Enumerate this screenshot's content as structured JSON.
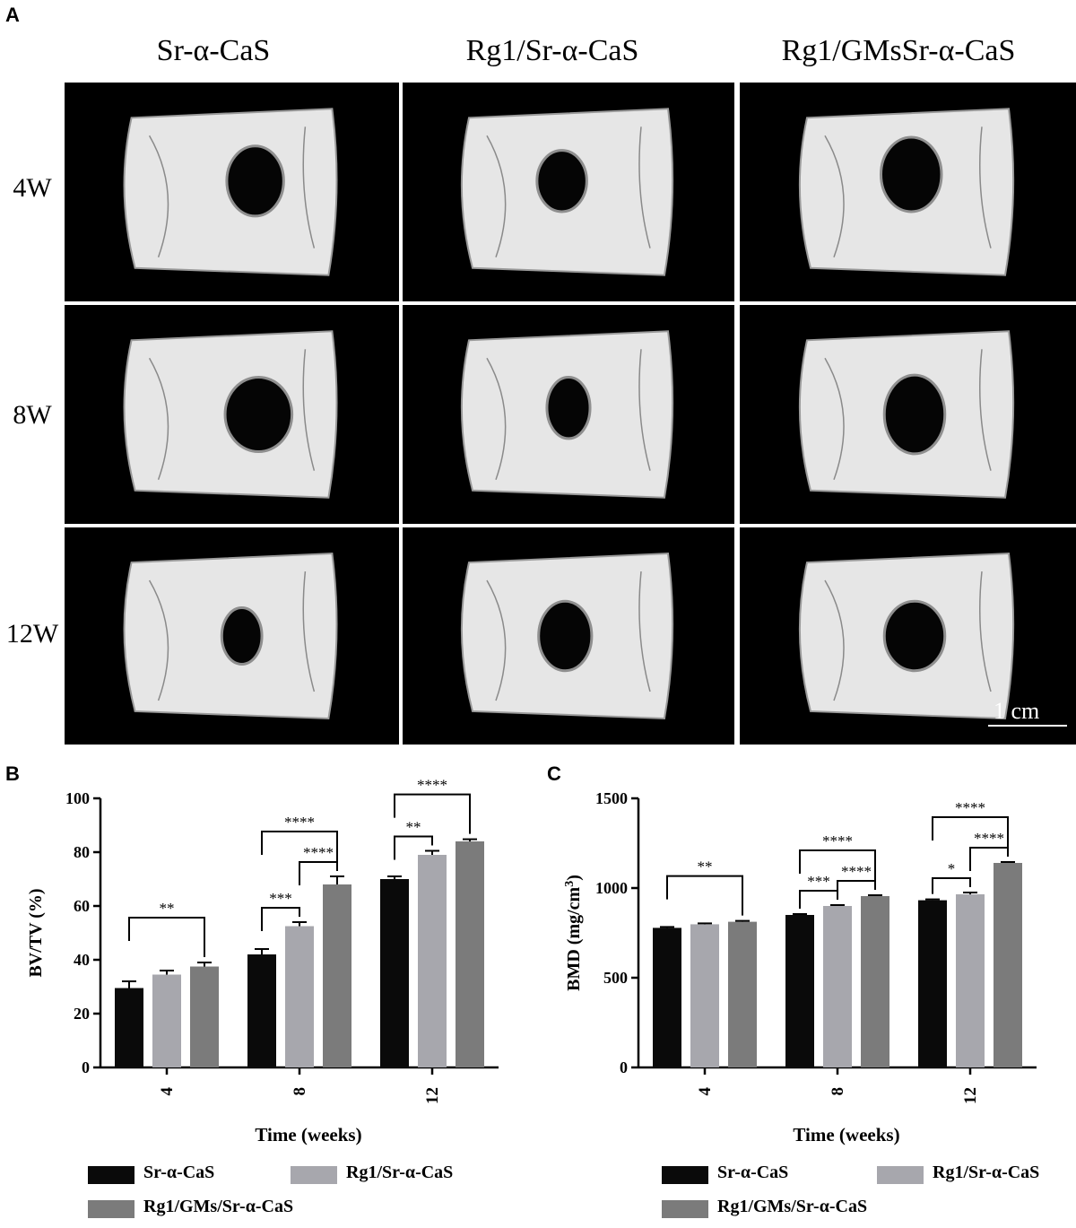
{
  "panels": {
    "a": "A",
    "b": "B",
    "c": "C"
  },
  "columns": [
    "Sr-α-CaS",
    "Rg1/Sr-α-CaS",
    "Rg1/GMsSr-α-CaS"
  ],
  "rows": [
    "4W",
    "8W",
    "12W"
  ],
  "scale_bar": "1 cm",
  "colors": {
    "series1": "#0a0a0a",
    "series2": "#a7a7ad",
    "series3": "#7b7b7b",
    "bone": "#e6e6e6"
  },
  "legend": [
    "Sr-α-CaS",
    "Rg1/Sr-α-CaS",
    "Rg1/GMs/Sr-α-CaS"
  ],
  "chart_data": [
    {
      "type": "bar",
      "categories": [
        "4",
        "8",
        "12"
      ],
      "series": [
        {
          "name": "Sr-α-CaS",
          "values": [
            29.5,
            42,
            70
          ],
          "errors": [
            2.5,
            2,
            1
          ]
        },
        {
          "name": "Rg1/Sr-α-CaS",
          "values": [
            34.5,
            52.5,
            79
          ],
          "errors": [
            1.5,
            1.5,
            1.5
          ]
        },
        {
          "name": "Rg1/GMs/Sr-α-CaS",
          "values": [
            37.5,
            68,
            84
          ],
          "errors": [
            1.5,
            3,
            0.8
          ]
        }
      ],
      "xlabel": "Time (weeks)",
      "ylabel": "BV/TV (%)",
      "ylim": [
        0,
        100
      ],
      "yticks": [
        0,
        20,
        40,
        60,
        80,
        100
      ],
      "significance": [
        {
          "group": 0,
          "from": 0,
          "to": 2,
          "label": "**"
        },
        {
          "group": 1,
          "from": 0,
          "to": 1,
          "label": "***"
        },
        {
          "group": 1,
          "from": 1,
          "to": 2,
          "label": "****"
        },
        {
          "group": 1,
          "from": 0,
          "to": 2,
          "label": "****"
        },
        {
          "group": 2,
          "from": 0,
          "to": 1,
          "label": "**"
        },
        {
          "group": 2,
          "from": 0,
          "to": 2,
          "label": "****"
        }
      ]
    },
    {
      "type": "bar",
      "categories": [
        "4",
        "8",
        "12"
      ],
      "series": [
        {
          "name": "Sr-α-CaS",
          "values": [
            778,
            850,
            932
          ],
          "errors": [
            5,
            5,
            5
          ]
        },
        {
          "name": "Rg1/Sr-α-CaS",
          "values": [
            798,
            900,
            965
          ],
          "errors": [
            5,
            5,
            10
          ]
        },
        {
          "name": "Rg1/GMs/Sr-α-CaS",
          "values": [
            812,
            955,
            1140
          ],
          "errors": [
            5,
            5,
            5
          ]
        }
      ],
      "xlabel": "Time (weeks)",
      "ylabel": "BMD (mg/cm3)",
      "ylim": [
        0,
        1500
      ],
      "yticks": [
        0,
        500,
        1000,
        1500
      ],
      "significance": [
        {
          "group": 0,
          "from": 0,
          "to": 2,
          "label": "**"
        },
        {
          "group": 1,
          "from": 0,
          "to": 1,
          "label": "***"
        },
        {
          "group": 1,
          "from": 1,
          "to": 2,
          "label": "****"
        },
        {
          "group": 1,
          "from": 0,
          "to": 2,
          "label": "****"
        },
        {
          "group": 2,
          "from": 0,
          "to": 1,
          "label": "*"
        },
        {
          "group": 2,
          "from": 1,
          "to": 2,
          "label": "****"
        },
        {
          "group": 2,
          "from": 0,
          "to": 2,
          "label": "****"
        }
      ]
    }
  ]
}
